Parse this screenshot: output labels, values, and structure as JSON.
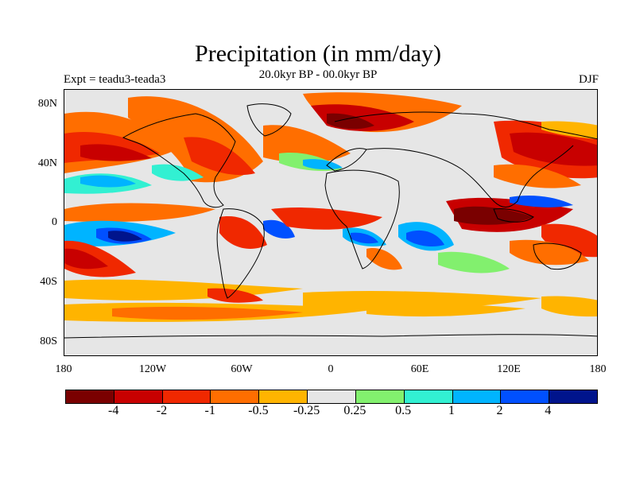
{
  "title": "Precipitation (in mm/day)",
  "subtitle": "20.0kyr BP - 00.0kyr BP",
  "left_label": "Expt = teadu3-teada3",
  "right_label": "DJF",
  "map": {
    "projection": "cylindrical equidistant",
    "lon_range": [
      -180,
      180
    ],
    "lat_range": [
      -90,
      90
    ],
    "x_ticks": [
      "180",
      "120W",
      "60W",
      "0",
      "60E",
      "120E",
      "180"
    ],
    "y_ticks": [
      "80N",
      "40N",
      "0",
      "40S",
      "80S"
    ]
  },
  "colorbar": {
    "colors": [
      "#7a0000",
      "#c80000",
      "#f02800",
      "#ff6e00",
      "#ffb400",
      "#e6e6e6",
      "#82f06e",
      "#32f0d2",
      "#00b4ff",
      "#0050ff",
      "#00148c"
    ],
    "labels": [
      "-4",
      "-2",
      "-1",
      "-0.5",
      "-0.25",
      "0.25",
      "0.5",
      "1",
      "2",
      "4"
    ]
  }
}
